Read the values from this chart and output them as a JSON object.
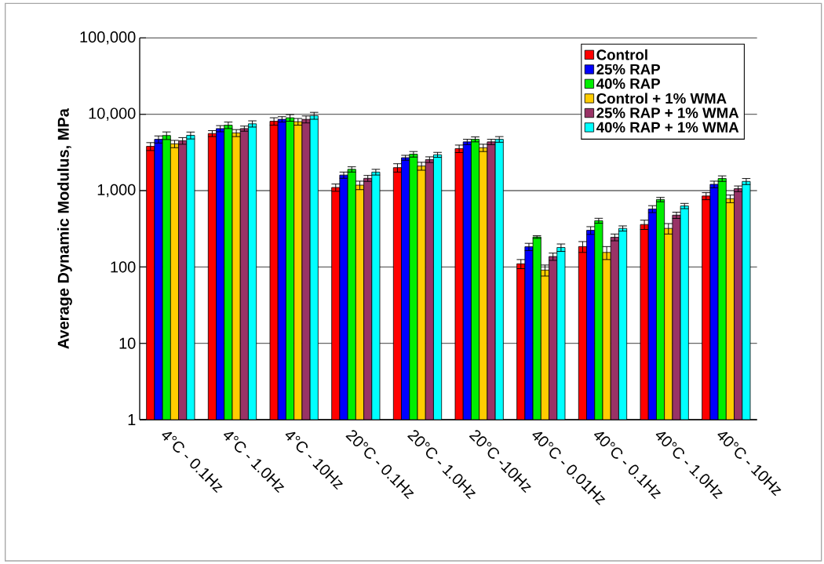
{
  "chart_data": {
    "type": "bar",
    "ylabel": "Average Dynamic Modulus, MPa",
    "log": "y",
    "grid": "y",
    "legend": "top right",
    "categories": [
      "4°C - 0.1Hz",
      "4°C - 1.0Hz",
      "4°C - 10Hz",
      "20°C - 0.1Hz",
      "20°C - 1.0Hz",
      "20°C -10Hz",
      "40°C - 0.01Hz",
      "40°C - 0.1Hz",
      "40°C - 1.0Hz",
      "40°C - 10Hz"
    ],
    "ylim": [
      1,
      100000
    ],
    "yticks": [
      1,
      10,
      100,
      {
        "value": 1000,
        "label": "1,000"
      },
      {
        "value": 10000,
        "label": "10,000"
      },
      {
        "value": 100000,
        "label": "100,000"
      }
    ],
    "series": [
      {
        "name": "Control",
        "color": "#ff0000",
        "values": [
          3800,
          5600,
          8100,
          1100,
          2000,
          3550,
          110,
          185,
          360,
          850
        ],
        "errors": [
          450,
          500,
          900,
          120,
          250,
          400,
          15,
          30,
          50,
          90
        ]
      },
      {
        "name": "25% RAP",
        "color": "#0000ff",
        "values": [
          4700,
          6500,
          8600,
          1600,
          2700,
          4350,
          184,
          302,
          575,
          1210
        ],
        "errors": [
          500,
          600,
          700,
          150,
          200,
          350,
          20,
          35,
          60,
          120
        ]
      },
      {
        "name": "40% RAP",
        "color": "#00ee00",
        "values": [
          5270,
          7200,
          9000,
          1900,
          3000,
          4700,
          247,
          404,
          765,
          1440
        ],
        "errors": [
          600,
          700,
          900,
          150,
          250,
          350,
          10,
          30,
          50,
          120
        ]
      },
      {
        "name": "Control + 1% WMA",
        "color": "#ffcc00",
        "values": [
          4100,
          5700,
          8000,
          1180,
          2100,
          3650,
          91,
          155,
          320,
          785
        ],
        "errors": [
          450,
          600,
          800,
          150,
          250,
          400,
          15,
          30,
          50,
          90
        ]
      },
      {
        "name": "25% RAP + 1% WMA",
        "color": "#993366",
        "values": [
          4500,
          6500,
          8600,
          1450,
          2550,
          4350,
          137,
          245,
          477,
          1060
        ],
        "errors": [
          450,
          500,
          900,
          130,
          220,
          350,
          15,
          25,
          45,
          90
        ]
      },
      {
        "name": "40% RAP + 1% WMA",
        "color": "#00ffff",
        "values": [
          5300,
          7500,
          9600,
          1750,
          2950,
          4700,
          180,
          320,
          630,
          1320
        ],
        "errors": [
          550,
          700,
          1000,
          150,
          220,
          400,
          20,
          25,
          50,
          120
        ]
      }
    ]
  }
}
